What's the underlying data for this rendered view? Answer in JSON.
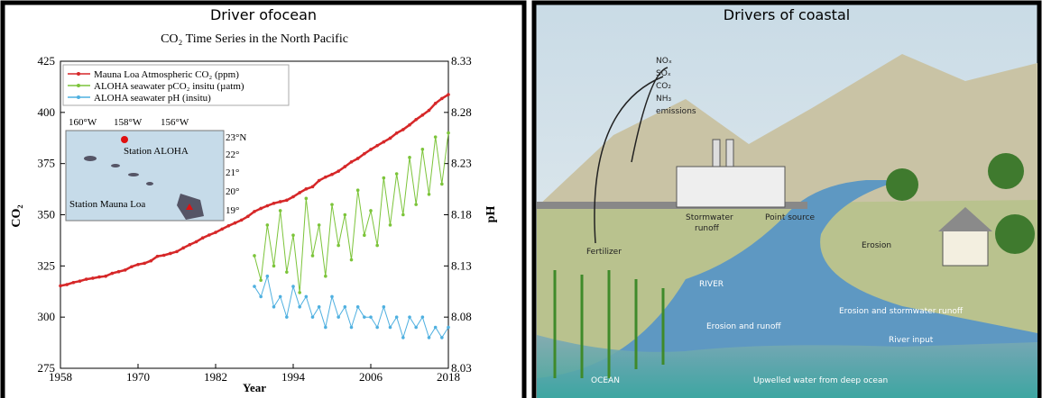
{
  "panels": {
    "left_header": "Driver ofocean",
    "right_header": "Drivers of coastal"
  },
  "chart_data": {
    "type": "line",
    "title": "CO₂ Time Series in the North Pacific",
    "x_label": "Year",
    "y_label": "CO₂",
    "y2_label": "pH",
    "xlim": [
      1958,
      2018
    ],
    "xticks": [
      1958,
      1970,
      1982,
      1994,
      2006,
      2018
    ],
    "ylim": [
      275,
      425
    ],
    "yticks": [
      275,
      300,
      325,
      350,
      375,
      400,
      425
    ],
    "y2lim": [
      8.03,
      8.33
    ],
    "y2ticks": [
      8.03,
      8.08,
      8.13,
      8.18,
      8.23,
      8.28,
      8.33
    ],
    "series": [
      {
        "name": "Mauna Loa Atmospheric CO₂ (ppm)",
        "color": "#d62728",
        "axis": "y",
        "x": [
          1958,
          1959,
          1960,
          1961,
          1962,
          1963,
          1964,
          1965,
          1966,
          1967,
          1968,
          1969,
          1970,
          1971,
          1972,
          1973,
          1974,
          1975,
          1976,
          1977,
          1978,
          1979,
          1980,
          1981,
          1982,
          1983,
          1984,
          1985,
          1986,
          1987,
          1988,
          1989,
          1990,
          1991,
          1992,
          1993,
          1994,
          1995,
          1996,
          1997,
          1998,
          1999,
          2000,
          2001,
          2002,
          2003,
          2004,
          2005,
          2006,
          2007,
          2008,
          2009,
          2010,
          2011,
          2012,
          2013,
          2014,
          2015,
          2016,
          2017,
          2018
        ],
        "values": [
          315.3,
          315.9,
          316.9,
          317.6,
          318.5,
          319.0,
          319.6,
          320.0,
          321.4,
          322.2,
          323.0,
          324.6,
          325.7,
          326.3,
          327.5,
          329.7,
          330.2,
          331.1,
          332.0,
          333.8,
          335.4,
          336.8,
          338.7,
          340.1,
          341.4,
          343.0,
          344.6,
          346.0,
          347.4,
          349.2,
          351.6,
          353.1,
          354.4,
          355.6,
          356.4,
          357.1,
          358.8,
          360.8,
          362.6,
          363.7,
          366.7,
          368.4,
          369.7,
          371.3,
          373.5,
          375.8,
          377.5,
          379.8,
          381.9,
          383.8,
          385.6,
          387.4,
          389.9,
          391.6,
          393.9,
          396.5,
          398.7,
          401.0,
          404.4,
          406.8,
          408.7
        ]
      },
      {
        "name": "ALOHA seawater pCO₂ insitu (µatm)",
        "color": "#7cc43a",
        "axis": "y",
        "x": [
          1988,
          1989,
          1990,
          1991,
          1992,
          1993,
          1994,
          1995,
          1996,
          1997,
          1998,
          1999,
          2000,
          2001,
          2002,
          2003,
          2004,
          2005,
          2006,
          2007,
          2008,
          2009,
          2010,
          2011,
          2012,
          2013,
          2014,
          2015,
          2016,
          2017,
          2018
        ],
        "values": [
          330,
          318,
          345,
          325,
          352,
          322,
          340,
          312,
          358,
          330,
          345,
          320,
          355,
          335,
          350,
          328,
          362,
          340,
          352,
          335,
          368,
          345,
          370,
          350,
          378,
          355,
          382,
          360,
          388,
          365,
          390
        ]
      },
      {
        "name": "ALOHA seawater pH (insitu)",
        "color": "#4fb0e0",
        "axis": "y2",
        "x": [
          1988,
          1989,
          1990,
          1991,
          1992,
          1993,
          1994,
          1995,
          1996,
          1997,
          1998,
          1999,
          2000,
          2001,
          2002,
          2003,
          2004,
          2005,
          2006,
          2007,
          2008,
          2009,
          2010,
          2011,
          2012,
          2013,
          2014,
          2015,
          2016,
          2017,
          2018
        ],
        "values": [
          8.11,
          8.1,
          8.12,
          8.09,
          8.1,
          8.08,
          8.11,
          8.09,
          8.1,
          8.08,
          8.09,
          8.07,
          8.1,
          8.08,
          8.09,
          8.07,
          8.09,
          8.08,
          8.08,
          8.07,
          8.09,
          8.07,
          8.08,
          8.06,
          8.08,
          8.07,
          8.08,
          8.06,
          8.07,
          8.06,
          8.07
        ]
      }
    ],
    "inset": {
      "lon_labels": [
        "160°W",
        "158°W",
        "156°W"
      ],
      "lat_labels": [
        "23°N",
        "22°",
        "21°",
        "20°",
        "19°"
      ],
      "station_aloha": "Station ALOHA",
      "station_mauna_loa": "Station Mauna Loa"
    }
  },
  "illustration": {
    "emissions": [
      "NOₓ",
      "SOₓ",
      "CO₂",
      "NH₃",
      "emissions"
    ],
    "fertilizer": "Fertilizer",
    "stormwater": [
      "Stormwater",
      "runoff"
    ],
    "point_source": "Point source",
    "erosion": "Erosion",
    "river": "RIVER",
    "erosion_stormwater": "Erosion and stormwater runoff",
    "erosion_runoff": "Erosion and runoff",
    "river_input": "River input",
    "ocean": "OCEAN",
    "upwelled": "Upwelled water from deep ocean"
  }
}
